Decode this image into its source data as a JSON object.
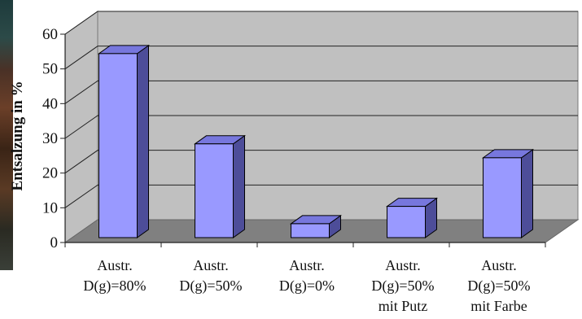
{
  "chart_data": {
    "type": "bar",
    "title": "",
    "ylabel": "Entsalzung in %",
    "xlabel": "",
    "categories": [
      [
        "Austr.",
        "D(g)=80%"
      ],
      [
        "Austr.",
        "D(g)=50%"
      ],
      [
        "Austr.",
        "D(g)=0%"
      ],
      [
        "Austr.",
        "D(g)=50%",
        "mit Putz"
      ],
      [
        "Austr.",
        "D(g)=50%",
        "mit Farbe"
      ]
    ],
    "values": [
      53,
      27,
      4,
      9,
      23
    ],
    "ylim": [
      0,
      60
    ],
    "yticks": [
      0,
      10,
      20,
      30,
      40,
      50,
      60
    ],
    "grid": true,
    "three_d": true,
    "colors": {
      "bar_front": "#9999ff",
      "bar_side": "#4d4d99",
      "bar_top": "#7777dd",
      "wall": "#c0c0c0",
      "floor": "#808080"
    }
  }
}
